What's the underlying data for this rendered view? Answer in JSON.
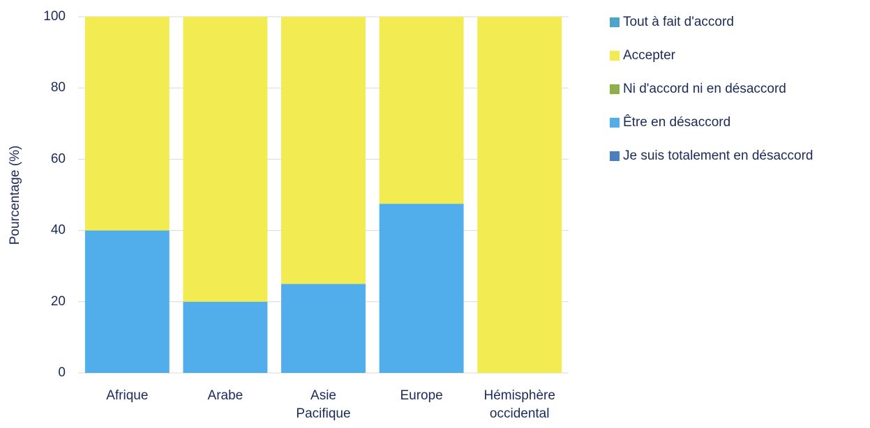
{
  "chart_data": {
    "type": "stacked_bar",
    "y_label": "Pourcentage (%)",
    "categories": [
      "Afrique",
      "Arabe",
      "Asie Pacifique",
      "Europe",
      "Hémisphère occidental"
    ],
    "series": [
      {
        "name": "Tout à fait d'accord",
        "color": "#4ea3c8",
        "values": [
          0,
          0,
          0,
          0,
          0
        ]
      },
      {
        "name": "Accepter",
        "color": "#f2ec52",
        "values": [
          60,
          80,
          75,
          52.5,
          100
        ]
      },
      {
        "name": "Ni d'accord ni en désaccord",
        "color": "#8db04a",
        "values": [
          0,
          0,
          0,
          0,
          0
        ]
      },
      {
        "name": "Être en désaccord",
        "color": "#52aeea",
        "values": [
          40,
          20,
          25,
          47.5,
          0
        ]
      },
      {
        "name": "Je suis totalement en désaccord",
        "color": "#4a7fc0",
        "values": [
          0,
          0,
          0,
          0,
          0
        ]
      }
    ],
    "ylim": [
      0,
      100
    ],
    "yticks": [
      0,
      20,
      40,
      60,
      80,
      100
    ],
    "grid": true,
    "legend": "right"
  }
}
